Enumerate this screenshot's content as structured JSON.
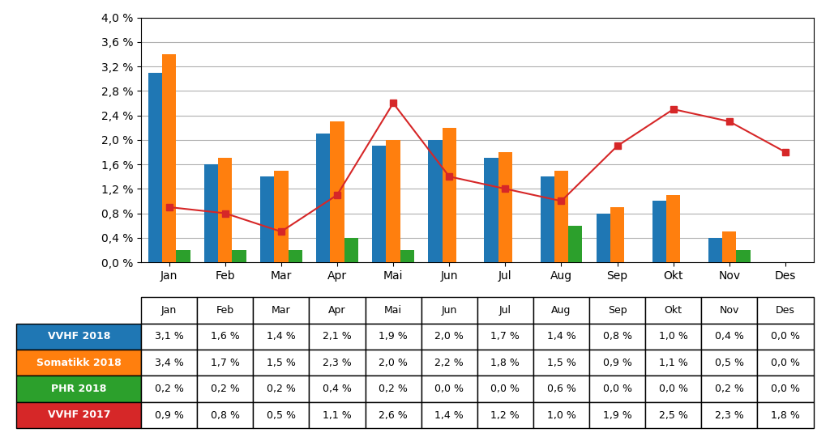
{
  "chart_data": {
    "type": "bar",
    "categories": [
      "Jan",
      "Feb",
      "Mar",
      "Apr",
      "Mai",
      "Jun",
      "Jul",
      "Aug",
      "Sep",
      "Okt",
      "Nov",
      "Des"
    ],
    "ylim": [
      0.0,
      4.0
    ],
    "yticks": [
      {
        "value": 0.0,
        "label": "0,0 %"
      },
      {
        "value": 0.4,
        "label": "0,4 %"
      },
      {
        "value": 0.8,
        "label": "0,8 %"
      },
      {
        "value": 1.2,
        "label": "1,2 %"
      },
      {
        "value": 1.6,
        "label": "1,6 %"
      },
      {
        "value": 2.0,
        "label": "2,0 %"
      },
      {
        "value": 2.4,
        "label": "2,4 %"
      },
      {
        "value": 2.8,
        "label": "2,8 %"
      },
      {
        "value": 3.2,
        "label": "3,2 %"
      },
      {
        "value": 3.6,
        "label": "3,6 %"
      },
      {
        "value": 4.0,
        "label": "4,0 %"
      }
    ],
    "grid": true,
    "series": [
      {
        "name": "VVHF 2018",
        "values": [
          3.1,
          1.6,
          1.4,
          2.1,
          1.9,
          2.0,
          1.7,
          1.4,
          0.8,
          1.0,
          0.4,
          0.0
        ],
        "value_labels": [
          "3,1 %",
          "1,6 %",
          "1,4 %",
          "2,1 %",
          "1,9 %",
          "2,0 %",
          "1,7 %",
          "1,4 %",
          "0,8 %",
          "1,0 %",
          "0,4 %",
          "0,0 %"
        ]
      },
      {
        "name": "Somatikk 2018",
        "values": [
          3.4,
          1.7,
          1.5,
          2.3,
          2.0,
          2.2,
          1.8,
          1.5,
          0.9,
          1.1,
          0.5,
          0.0
        ],
        "value_labels": [
          "3,4 %",
          "1,7 %",
          "1,5 %",
          "2,3 %",
          "2,0 %",
          "2,2 %",
          "1,8 %",
          "1,5 %",
          "0,9 %",
          "1,1 %",
          "0,5 %",
          "0,0 %"
        ]
      },
      {
        "name": "PHR 2018",
        "values": [
          0.2,
          0.2,
          0.2,
          0.4,
          0.2,
          0.0,
          0.0,
          0.6,
          0.0,
          0.0,
          0.2,
          0.0
        ],
        "value_labels": [
          "0,2 %",
          "0,2 %",
          "0,2 %",
          "0,4 %",
          "0,2 %",
          "0,0 %",
          "0,0 %",
          "0,6 %",
          "0,0 %",
          "0,0 %",
          "0,2 %",
          "0,0 %"
        ]
      },
      {
        "name": "VVHF 2017",
        "type": "line",
        "marker": "square",
        "values": [
          0.9,
          0.8,
          0.5,
          1.1,
          2.6,
          1.4,
          1.2,
          1.0,
          1.9,
          2.5,
          2.3,
          1.8
        ],
        "value_labels": [
          "0,9 %",
          "0,8 %",
          "0,5 %",
          "1,1 %",
          "2,6 %",
          "1,4 %",
          "1,2 %",
          "1,0 %",
          "1,9 %",
          "2,5 %",
          "2,3 %",
          "1,8 %"
        ]
      }
    ]
  }
}
